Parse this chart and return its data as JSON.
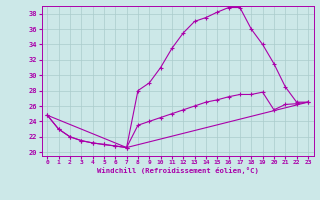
{
  "bg_color": "#cce8e8",
  "grid_color": "#aacccc",
  "line_color": "#aa00aa",
  "xlim": [
    -0.5,
    23.5
  ],
  "ylim": [
    19.5,
    39.0
  ],
  "yticks": [
    20,
    22,
    24,
    26,
    28,
    30,
    32,
    34,
    36,
    38
  ],
  "xticks": [
    0,
    1,
    2,
    3,
    4,
    5,
    6,
    7,
    8,
    9,
    10,
    11,
    12,
    13,
    14,
    15,
    16,
    17,
    18,
    19,
    20,
    21,
    22,
    23
  ],
  "xlabel": "Windchill (Refroidissement éolien,°C)",
  "curve1_x": [
    0,
    1,
    2,
    3,
    4,
    5,
    6,
    7,
    8,
    9,
    10,
    11,
    12,
    13,
    14,
    15,
    16,
    17,
    18,
    19,
    20,
    21,
    22,
    23
  ],
  "curve1_y": [
    24.8,
    23.0,
    22.0,
    21.5,
    21.2,
    21.0,
    20.8,
    20.6,
    28.0,
    29.0,
    31.0,
    33.5,
    35.5,
    37.0,
    37.5,
    38.2,
    38.8,
    38.8,
    36.0,
    34.0,
    31.5,
    28.5,
    26.5,
    26.5
  ],
  "curve2_x": [
    0,
    1,
    2,
    3,
    4,
    5,
    6,
    7,
    8,
    9,
    10,
    11,
    12,
    13,
    14,
    15,
    16,
    17,
    18,
    19,
    20,
    21,
    22,
    23
  ],
  "curve2_y": [
    24.8,
    23.0,
    22.0,
    21.5,
    21.2,
    21.0,
    20.8,
    20.6,
    23.5,
    24.0,
    24.5,
    25.0,
    25.5,
    26.0,
    26.5,
    26.8,
    27.2,
    27.5,
    27.5,
    27.8,
    25.5,
    26.2,
    26.3,
    26.5
  ],
  "curve3_x": [
    0,
    7,
    23
  ],
  "curve3_y": [
    24.8,
    20.6,
    26.5
  ]
}
